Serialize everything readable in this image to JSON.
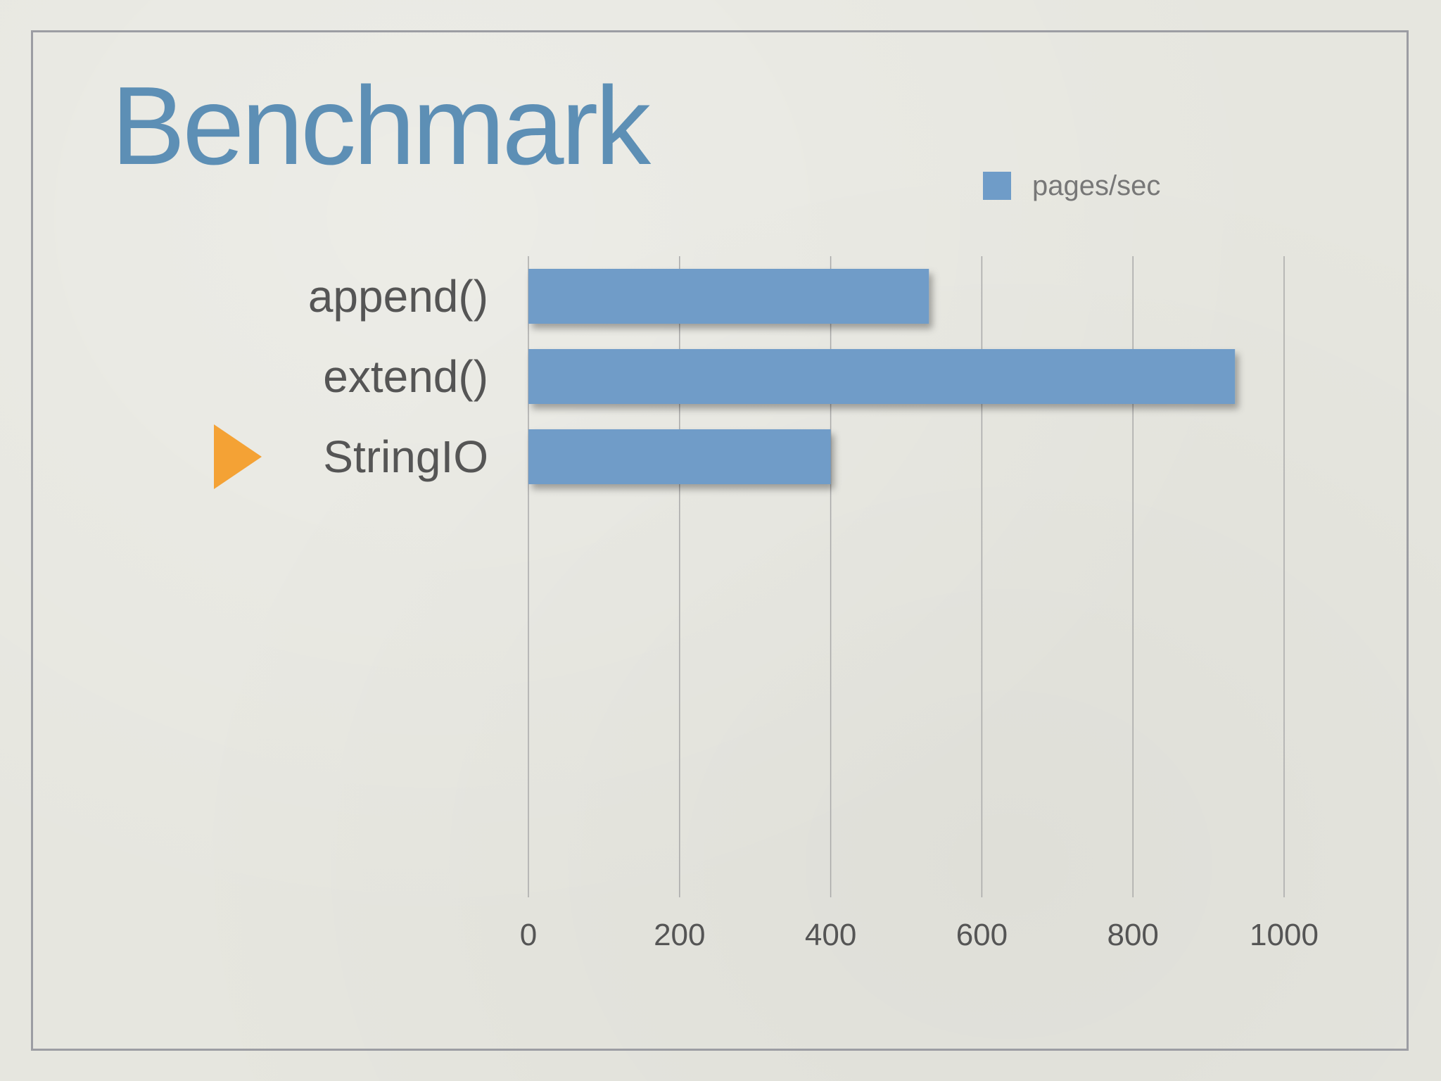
{
  "slide": {
    "title": "Benchmark"
  },
  "chart_data": {
    "type": "bar",
    "orientation": "horizontal",
    "categories": [
      "append()",
      "extend()",
      "StringIO"
    ],
    "series": [
      {
        "name": "pages/sec",
        "values": [
          530,
          935,
          400
        ]
      }
    ],
    "xlim": [
      0,
      1000
    ],
    "x_ticks": [
      "0",
      "200",
      "400",
      "600",
      "800",
      "1000"
    ],
    "grid": true,
    "legend": "top-right",
    "highlighted_category": "StringIO",
    "colors": {
      "bar": "#6f9cc8",
      "marker": "#f4a235",
      "grid": "#a9a9a9",
      "category_text": "#555555",
      "tick_text": "#555555",
      "legend_text": "#777777"
    },
    "marker_icon": "triangle-right-icon"
  }
}
